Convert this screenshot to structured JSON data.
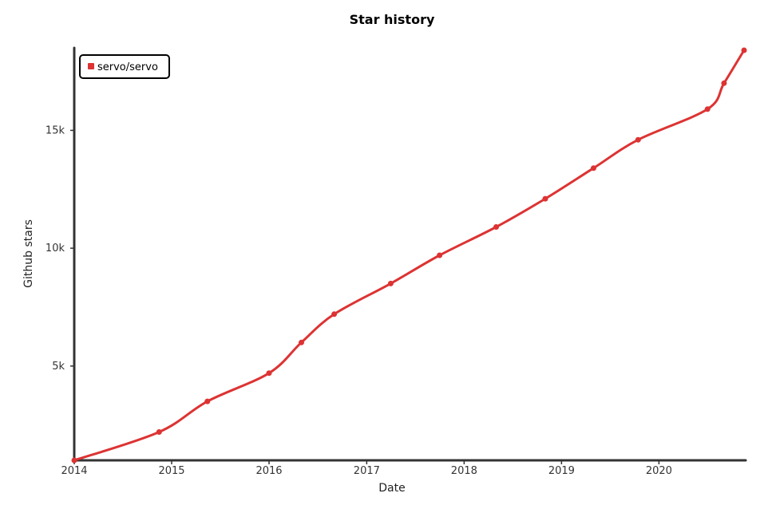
{
  "chart_data": {
    "type": "line",
    "title": "Star history",
    "xlabel": "Date",
    "ylabel": "Github stars",
    "x_ticks": [
      "2014",
      "2015",
      "2016",
      "2017",
      "2018",
      "2019",
      "2020"
    ],
    "y_ticks": [
      "5k",
      "10k",
      "15k"
    ],
    "y_tick_values": [
      5000,
      10000,
      15000
    ],
    "xlim": [
      "2014-01-01",
      "2020-11-15"
    ],
    "ylim": [
      1000,
      18500
    ],
    "grid": false,
    "legend_position": "top-left",
    "series": [
      {
        "name": "servo/servo",
        "color": "#dd3333",
        "points": [
          {
            "x": "2014-01-01",
            "y": 1000
          },
          {
            "x": "2014-11-15",
            "y": 2200
          },
          {
            "x": "2015-05-15",
            "y": 3500
          },
          {
            "x": "2016-01-01",
            "y": 4700
          },
          {
            "x": "2016-05-01",
            "y": 6000
          },
          {
            "x": "2016-09-01",
            "y": 7200
          },
          {
            "x": "2017-04-01",
            "y": 8500
          },
          {
            "x": "2017-10-01",
            "y": 9700
          },
          {
            "x": "2018-05-01",
            "y": 10900
          },
          {
            "x": "2018-11-01",
            "y": 12100
          },
          {
            "x": "2019-05-01",
            "y": 13400
          },
          {
            "x": "2019-10-15",
            "y": 14600
          },
          {
            "x": "2020-07-01",
            "y": 15900
          },
          {
            "x": "2020-09-01",
            "y": 17000
          },
          {
            "x": "2020-11-15",
            "y": 18400
          }
        ]
      }
    ]
  }
}
